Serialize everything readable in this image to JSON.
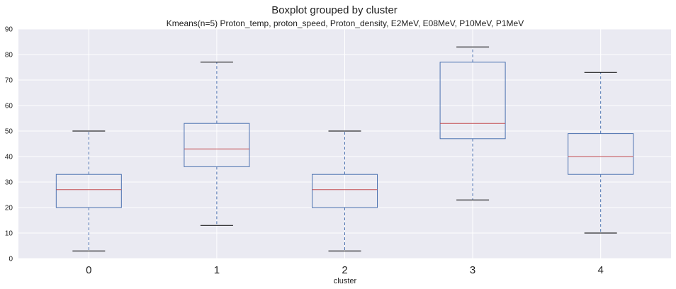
{
  "suptitle": "Boxplot grouped by cluster",
  "chart_data": {
    "type": "boxplot",
    "title": "Kmeans(n=5) Proton_temp, proton_speed, Proton_density, E2MeV, E08MeV, P10MeV, P1MeV",
    "xlabel": "cluster",
    "ylabel": "",
    "ylim": [
      0,
      90
    ],
    "yticks": [
      0,
      10,
      20,
      30,
      40,
      50,
      60,
      70,
      80,
      90
    ],
    "grid": true,
    "categories": [
      "0",
      "1",
      "2",
      "3",
      "4"
    ],
    "boxes": [
      {
        "whisker_low": 3,
        "q1": 20,
        "median": 27,
        "q3": 33,
        "whisker_high": 50
      },
      {
        "whisker_low": 13,
        "q1": 36,
        "median": 43,
        "q3": 53,
        "whisker_high": 77
      },
      {
        "whisker_low": 3,
        "q1": 20,
        "median": 27,
        "q3": 33,
        "whisker_high": 50
      },
      {
        "whisker_low": 23,
        "q1": 47,
        "median": 53,
        "q3": 77,
        "whisker_high": 83
      },
      {
        "whisker_low": 10,
        "q1": 33,
        "median": 40,
        "q3": 49,
        "whisker_high": 73
      }
    ],
    "colors": {
      "background": "#eaeaf2",
      "grid": "#ffffff",
      "box": "#4c72b0",
      "median": "#c44e52",
      "cap": "#000000"
    }
  }
}
